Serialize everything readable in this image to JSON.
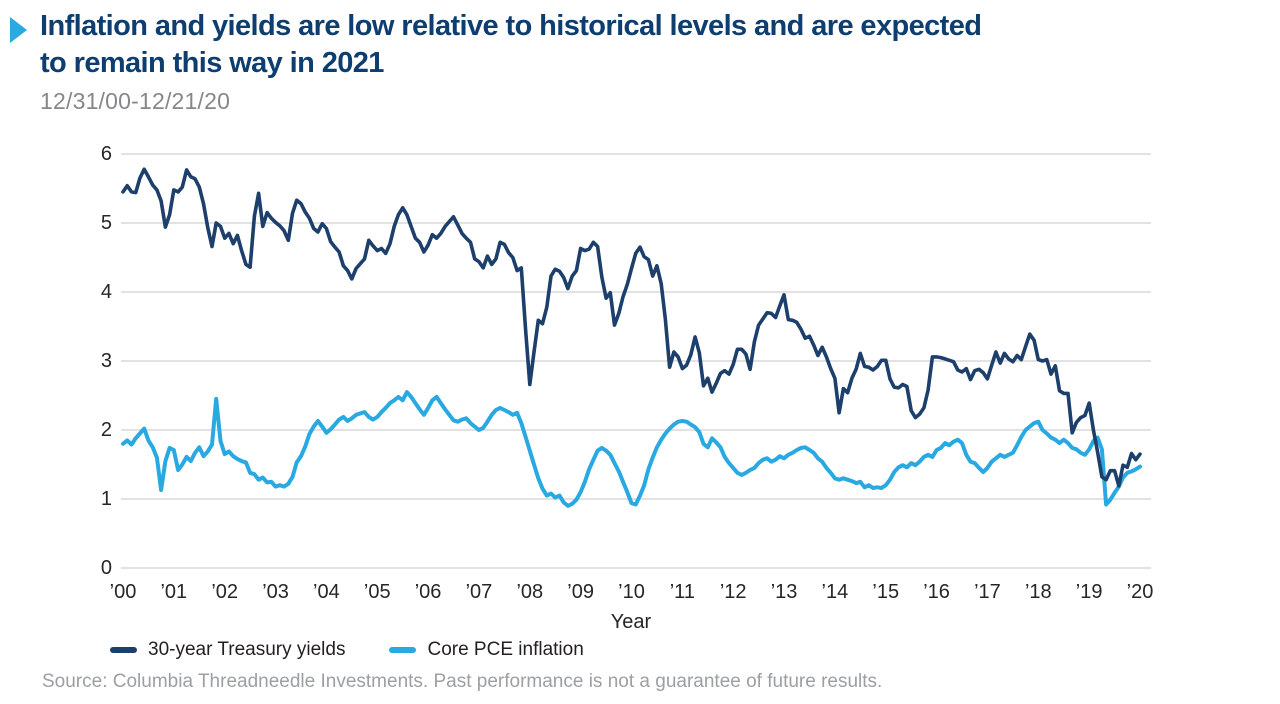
{
  "header": {
    "title": "Inflation and yields are low relative to historical levels and are expected to remain this way in 2021",
    "title_lines": [
      "Inflation and yields are low relative to historical levels and are expected",
      "to remain this way in 2021"
    ],
    "date_range": "12/31/00-12/21/20",
    "bullet_color": "#29abe2"
  },
  "footer": {
    "source": "Source: Columbia Threadneedle Investments. Past performance is not a guarantee of future results."
  },
  "chart_data": {
    "type": "line",
    "title": "Inflation and yields are low relative to historical levels and are expected to remain this way in 2021",
    "date_range": "12/31/00-12/21/20",
    "xlabel": "Year",
    "ylabel": "",
    "ylim": [
      0,
      6
    ],
    "y_ticks": [
      0,
      1,
      2,
      3,
      4,
      5,
      6
    ],
    "x_tick_labels": [
      "’00",
      "’01",
      "’02",
      "’03",
      "’04",
      "’05",
      "’06",
      "’07",
      "’08",
      "’09",
      "’10",
      "’11",
      "’12",
      "’13",
      "’14",
      "’15",
      "’16",
      "’17",
      "’18",
      "’19",
      "’20"
    ],
    "frequency": "monthly",
    "start": "Dec 2000",
    "grid": "horizontal",
    "gridline_color": "#d8d9da",
    "legend_position": "bottom",
    "series": [
      {
        "name": "30-year Treasury yields",
        "color": "#1c3f6b",
        "stroke_width": 3.6,
        "values": [
          5.45,
          5.54,
          5.45,
          5.44,
          5.65,
          5.78,
          5.67,
          5.55,
          5.48,
          5.32,
          4.94,
          5.12,
          5.48,
          5.45,
          5.52,
          5.77,
          5.67,
          5.64,
          5.52,
          5.28,
          4.93,
          4.66,
          5.0,
          4.95,
          4.78,
          4.85,
          4.7,
          4.82,
          4.6,
          4.4,
          4.36,
          5.1,
          5.43,
          4.95,
          5.15,
          5.07,
          5.01,
          4.96,
          4.89,
          4.75,
          5.14,
          5.33,
          5.28,
          5.16,
          5.07,
          4.92,
          4.87,
          4.99,
          4.92,
          4.73,
          4.65,
          4.58,
          4.38,
          4.31,
          4.19,
          4.34,
          4.41,
          4.48,
          4.75,
          4.67,
          4.6,
          4.63,
          4.56,
          4.7,
          4.95,
          5.12,
          5.22,
          5.12,
          4.95,
          4.78,
          4.72,
          4.58,
          4.68,
          4.83,
          4.78,
          4.85,
          4.95,
          5.02,
          5.09,
          4.97,
          4.85,
          4.78,
          4.72,
          4.48,
          4.44,
          4.35,
          4.52,
          4.4,
          4.48,
          4.72,
          4.69,
          4.57,
          4.5,
          4.31,
          4.35,
          3.45,
          2.66,
          3.13,
          3.59,
          3.54,
          3.78,
          4.23,
          4.33,
          4.3,
          4.21,
          4.05,
          4.23,
          4.31,
          4.63,
          4.6,
          4.62,
          4.72,
          4.66,
          4.22,
          3.91,
          3.99,
          3.52,
          3.69,
          3.93,
          4.11,
          4.34,
          4.56,
          4.65,
          4.51,
          4.47,
          4.23,
          4.38,
          4.12,
          3.6,
          2.91,
          3.13,
          3.06,
          2.89,
          2.94,
          3.09,
          3.35,
          3.12,
          2.64,
          2.75,
          2.55,
          2.68,
          2.82,
          2.86,
          2.81,
          2.95,
          3.17,
          3.17,
          3.1,
          2.88,
          3.28,
          3.52,
          3.61,
          3.7,
          3.69,
          3.63,
          3.8,
          3.96,
          3.6,
          3.59,
          3.56,
          3.46,
          3.33,
          3.36,
          3.23,
          3.08,
          3.2,
          3.06,
          2.89,
          2.75,
          2.25,
          2.6,
          2.54,
          2.75,
          2.88,
          3.11,
          2.92,
          2.91,
          2.87,
          2.92,
          3.01,
          3.01,
          2.74,
          2.62,
          2.61,
          2.66,
          2.63,
          2.28,
          2.18,
          2.23,
          2.32,
          2.58,
          3.06,
          3.06,
          3.05,
          3.03,
          3.01,
          2.99,
          2.87,
          2.84,
          2.89,
          2.73,
          2.86,
          2.88,
          2.83,
          2.74,
          2.94,
          3.13,
          2.97,
          3.11,
          3.03,
          2.99,
          3.08,
          3.02,
          3.21,
          3.39,
          3.3,
          3.02,
          3.0,
          3.02,
          2.81,
          2.93,
          2.57,
          2.53,
          2.53,
          1.96,
          2.11,
          2.18,
          2.21,
          2.39,
          2.0,
          1.68,
          1.32,
          1.28,
          1.41,
          1.41,
          1.19,
          1.49,
          1.46,
          1.66,
          1.57,
          1.65
        ]
      },
      {
        "name": "Core PCE inflation",
        "color": "#29a9e1",
        "stroke_width": 4,
        "values": [
          1.8,
          1.85,
          1.79,
          1.88,
          1.95,
          2.02,
          1.85,
          1.75,
          1.6,
          1.13,
          1.55,
          1.74,
          1.71,
          1.42,
          1.5,
          1.61,
          1.55,
          1.67,
          1.75,
          1.62,
          1.69,
          1.79,
          2.45,
          1.84,
          1.65,
          1.69,
          1.62,
          1.58,
          1.55,
          1.53,
          1.38,
          1.36,
          1.28,
          1.31,
          1.24,
          1.25,
          1.18,
          1.2,
          1.18,
          1.22,
          1.32,
          1.53,
          1.62,
          1.76,
          1.94,
          2.05,
          2.13,
          2.05,
          1.96,
          2.01,
          2.08,
          2.15,
          2.19,
          2.13,
          2.17,
          2.22,
          2.24,
          2.26,
          2.19,
          2.15,
          2.19,
          2.26,
          2.32,
          2.39,
          2.43,
          2.48,
          2.43,
          2.55,
          2.48,
          2.39,
          2.3,
          2.22,
          2.32,
          2.43,
          2.48,
          2.39,
          2.3,
          2.22,
          2.14,
          2.12,
          2.15,
          2.17,
          2.1,
          2.05,
          2.0,
          2.03,
          2.12,
          2.22,
          2.29,
          2.32,
          2.29,
          2.26,
          2.22,
          2.25,
          2.1,
          1.9,
          1.7,
          1.5,
          1.3,
          1.15,
          1.05,
          1.08,
          1.02,
          1.05,
          0.95,
          0.9,
          0.93,
          0.99,
          1.1,
          1.25,
          1.43,
          1.57,
          1.7,
          1.74,
          1.7,
          1.64,
          1.52,
          1.4,
          1.25,
          1.1,
          0.94,
          0.92,
          1.05,
          1.2,
          1.43,
          1.6,
          1.75,
          1.86,
          1.95,
          2.02,
          2.08,
          2.12,
          2.13,
          2.12,
          2.08,
          2.04,
          1.97,
          1.8,
          1.75,
          1.88,
          1.82,
          1.75,
          1.61,
          1.52,
          1.45,
          1.38,
          1.35,
          1.38,
          1.42,
          1.45,
          1.52,
          1.57,
          1.59,
          1.54,
          1.57,
          1.62,
          1.59,
          1.64,
          1.67,
          1.71,
          1.74,
          1.75,
          1.71,
          1.67,
          1.59,
          1.54,
          1.45,
          1.38,
          1.3,
          1.28,
          1.3,
          1.28,
          1.26,
          1.23,
          1.25,
          1.17,
          1.2,
          1.16,
          1.17,
          1.16,
          1.2,
          1.28,
          1.39,
          1.46,
          1.49,
          1.46,
          1.52,
          1.49,
          1.54,
          1.61,
          1.64,
          1.61,
          1.71,
          1.74,
          1.81,
          1.78,
          1.83,
          1.86,
          1.81,
          1.64,
          1.54,
          1.52,
          1.45,
          1.39,
          1.45,
          1.54,
          1.59,
          1.64,
          1.61,
          1.64,
          1.67,
          1.78,
          1.9,
          2.0,
          2.05,
          2.1,
          2.12,
          2.0,
          1.95,
          1.89,
          1.86,
          1.81,
          1.86,
          1.81,
          1.74,
          1.72,
          1.67,
          1.64,
          1.72,
          1.84,
          1.89,
          1.72,
          0.92,
          0.99,
          1.09,
          1.18,
          1.31,
          1.38,
          1.4,
          1.43,
          1.47
        ]
      }
    ]
  }
}
